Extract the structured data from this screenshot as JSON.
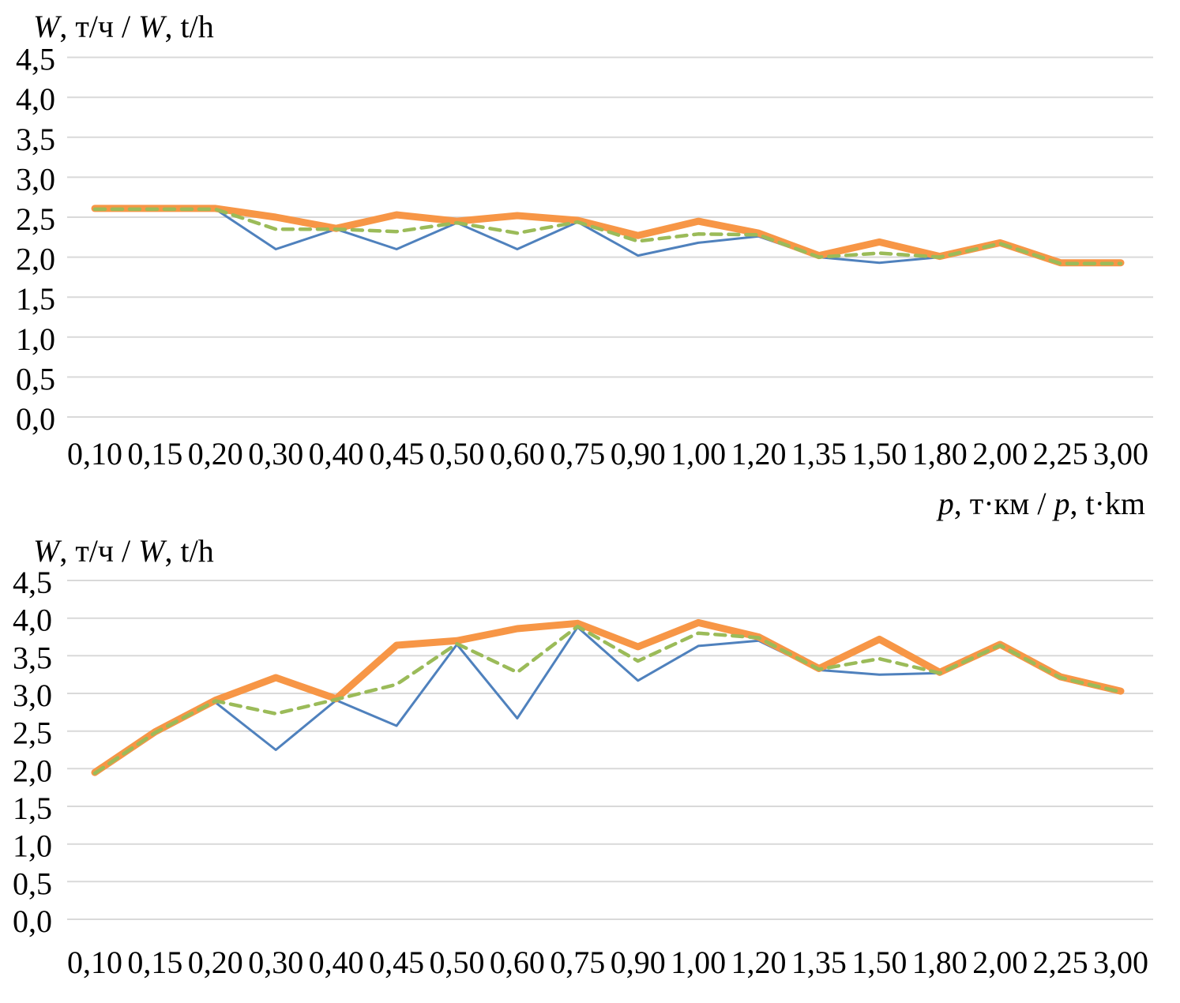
{
  "colors": {
    "series_blue": "#4F81BD",
    "series_green": "#9BBB59",
    "series_orange": "#F79646",
    "gridline": "#D9D9D9",
    "text": "#000000",
    "background": "#FFFFFF"
  },
  "axis_titles": {
    "y_top": {
      "p1": "W",
      "p2": ", т/ч / ",
      "p3": "W",
      "p4": ", t/h"
    },
    "x_top": {
      "p1": "p",
      "p2": ", т·км / ",
      "p3": "p",
      "p4": ", t·km"
    },
    "y_bottom": {
      "p1": "W",
      "p2": ", т/ч / ",
      "p3": "W",
      "p4": ", t/h"
    }
  },
  "chart_data": [
    {
      "type": "line",
      "title": "W, т/ч / W, t/h",
      "xlabel": "p, т·км / p, t·km",
      "ylabel": "W, т/ч / W, t/h",
      "grid": true,
      "legend": "none",
      "ylim": [
        0.0,
        4.5
      ],
      "y_ticks": [
        "4,5",
        "4,0",
        "3,5",
        "3,0",
        "2,5",
        "2,0",
        "1,5",
        "1,0",
        "0,5",
        "0,0"
      ],
      "y_tick_values": [
        4.5,
        4.0,
        3.5,
        3.0,
        2.5,
        2.0,
        1.5,
        1.0,
        0.5,
        0.0
      ],
      "categories": [
        "0,10",
        "0,15",
        "0,20",
        "0,30",
        "0,40",
        "0,45",
        "0,50",
        "0,60",
        "0,75",
        "0,90",
        "1,00",
        "1,20",
        "1,35",
        "1,50",
        "1,80",
        "2,00",
        "2,25",
        "3,00"
      ],
      "series": [
        {
          "name": "thin-solid-blue",
          "color": "#4F81BD",
          "values": [
            2.6,
            2.6,
            2.6,
            2.1,
            2.35,
            2.1,
            2.43,
            2.1,
            2.44,
            2.02,
            2.18,
            2.26,
            2.0,
            1.93,
            2.0,
            2.17,
            1.92,
            1.92
          ]
        },
        {
          "name": "dashed-green",
          "color": "#9BBB59",
          "values": [
            2.6,
            2.6,
            2.6,
            2.35,
            2.35,
            2.32,
            2.43,
            2.3,
            2.44,
            2.2,
            2.29,
            2.28,
            2.0,
            2.05,
            2.0,
            2.17,
            1.92,
            1.92
          ]
        },
        {
          "name": "thick-solid-orange",
          "color": "#F79646",
          "values": [
            2.61,
            2.61,
            2.61,
            2.5,
            2.36,
            2.53,
            2.45,
            2.52,
            2.46,
            2.27,
            2.45,
            2.3,
            2.02,
            2.19,
            2.01,
            2.18,
            1.93,
            1.93
          ]
        }
      ]
    },
    {
      "type": "line",
      "title": "W, т/ч / W, t/h",
      "xlabel": "",
      "ylabel": "W, т/ч / W, t/h",
      "grid": true,
      "legend": "none",
      "ylim": [
        0.0,
        4.5
      ],
      "y_ticks": [
        "4,5",
        "4,0",
        "3,5",
        "3,0",
        "2,5",
        "2,0",
        "1,5",
        "1,0",
        "0,5",
        "0,0"
      ],
      "y_tick_values": [
        4.5,
        4.0,
        3.5,
        3.0,
        2.5,
        2.0,
        1.5,
        1.0,
        0.5,
        0.0
      ],
      "categories": [
        "0,10",
        "0,15",
        "0,20",
        "0,30",
        "0,40",
        "0,45",
        "0,50",
        "0,60",
        "0,75",
        "0,90",
        "1,00",
        "1,20",
        "1,35",
        "1,50",
        "1,80",
        "2,00",
        "2,25",
        "3,00"
      ],
      "series": [
        {
          "name": "thin-solid-blue",
          "color": "#4F81BD",
          "values": [
            1.94,
            2.48,
            2.88,
            2.25,
            2.91,
            2.57,
            3.65,
            2.67,
            3.88,
            3.17,
            3.63,
            3.7,
            3.31,
            3.25,
            3.27,
            3.64,
            3.21,
            3.02
          ]
        },
        {
          "name": "dashed-green",
          "color": "#9BBB59",
          "values": [
            1.94,
            2.48,
            2.9,
            2.73,
            2.92,
            3.12,
            3.66,
            3.28,
            3.89,
            3.43,
            3.8,
            3.74,
            3.32,
            3.46,
            3.27,
            3.64,
            3.21,
            3.02
          ]
        },
        {
          "name": "thick-solid-orange",
          "color": "#F79646",
          "values": [
            1.95,
            2.49,
            2.91,
            3.21,
            2.93,
            3.64,
            3.7,
            3.86,
            3.93,
            3.62,
            3.94,
            3.75,
            3.33,
            3.72,
            3.28,
            3.65,
            3.22,
            3.03
          ]
        }
      ]
    }
  ]
}
